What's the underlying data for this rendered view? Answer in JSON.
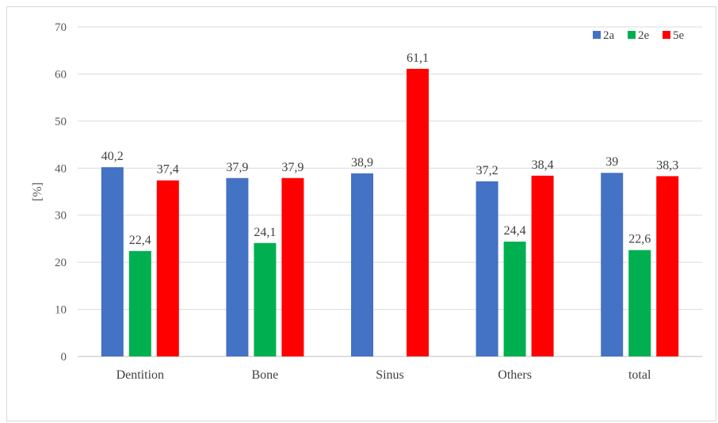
{
  "chart_data": {
    "type": "bar",
    "categories": [
      "Dentition",
      "Bone",
      "Sinus",
      "Others",
      "total"
    ],
    "series": [
      {
        "name": "2a",
        "color": "#4472c4",
        "values": [
          40.2,
          37.9,
          38.9,
          37.2,
          39.0
        ],
        "labels": [
          "40,2",
          "37,9",
          "38,9",
          "37,2",
          "39"
        ]
      },
      {
        "name": "2e",
        "color": "#00b050",
        "values": [
          22.4,
          24.1,
          null,
          24.4,
          22.6
        ],
        "labels": [
          "22,4",
          "24,1",
          "",
          "24,4",
          "22,6"
        ]
      },
      {
        "name": "5e",
        "color": "#ff0000",
        "values": [
          37.4,
          37.9,
          61.1,
          38.4,
          38.3
        ],
        "labels": [
          "37,4",
          "37,9",
          "61,1",
          "38,4",
          "38,3"
        ]
      }
    ],
    "title": "",
    "xlabel": "",
    "ylabel": "[%]",
    "ylim": [
      0,
      70
    ],
    "yticks": [
      0,
      10,
      20,
      30,
      40,
      50,
      60,
      70
    ],
    "grid": true,
    "legend_position": "top-right"
  }
}
